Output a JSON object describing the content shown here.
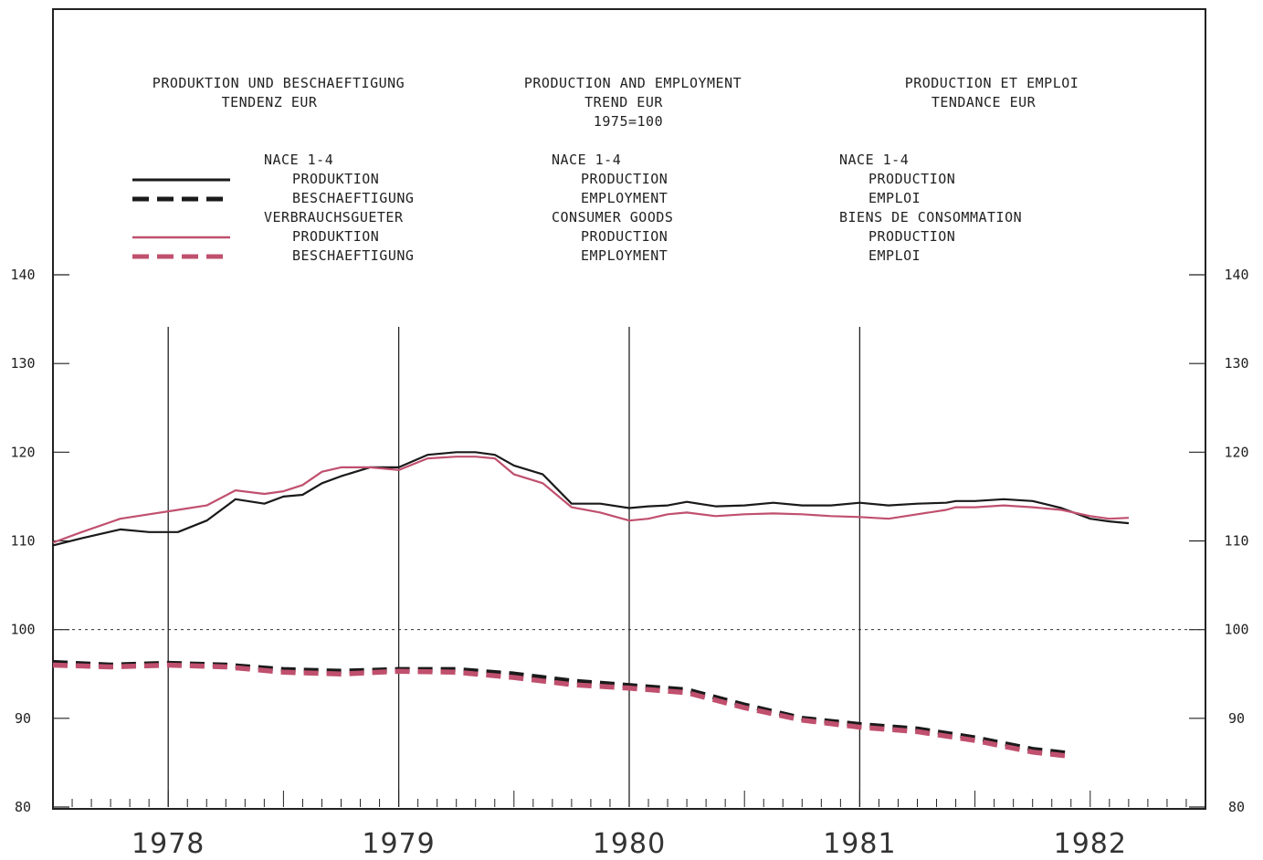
{
  "header": {
    "de": [
      "PRODUKTION UND BESCHAEFTIGUNG",
      "TENDENZ EUR"
    ],
    "en": [
      "PRODUCTION AND EMPLOYMENT",
      "TREND EUR",
      "1975=100"
    ],
    "fr": [
      "PRODUCTION ET EMPLOI",
      "TENDANCE EUR"
    ]
  },
  "legend": {
    "de": [
      "NACE 1-4",
      "PRODUKTION",
      "BESCHAEFTIGUNG",
      "VERBRAUCHSGUETER",
      "PRODUKTION",
      "BESCHAEFTIGUNG"
    ],
    "en": [
      "NACE 1-4",
      "PRODUCTION",
      "EMPLOYMENT",
      "CONSUMER GOODS",
      "PRODUCTION",
      "EMPLOYMENT"
    ],
    "fr": [
      "NACE 1-4",
      "PRODUCTION",
      "EMPLOI",
      "BIENS DE CONSOMMATION",
      "PRODUCTION",
      "EMPLOI"
    ]
  },
  "colors": {
    "black": "#1a1a1a",
    "pink": "#c0506e",
    "axis": "#222222"
  },
  "chart_data": {
    "type": "line",
    "ylim": [
      80,
      140
    ],
    "yticks": [
      80,
      90,
      100,
      110,
      120,
      130,
      140
    ],
    "xlim": [
      1978.0,
      1983.0
    ],
    "year_labels": [
      "1978",
      "1979",
      "1980",
      "1981",
      "1982"
    ],
    "reference_line": 100,
    "grid": false,
    "series": [
      {
        "name": "NACE 1-4 PRODUKTION / PRODUCTION",
        "color": "#1a1a1a",
        "style": "solid",
        "x": [
          1978.0,
          1978.125,
          1978.292,
          1978.417,
          1978.542,
          1978.667,
          1978.792,
          1978.917,
          1979.0,
          1979.083,
          1979.167,
          1979.25,
          1979.375,
          1979.5,
          1979.625,
          1979.75,
          1979.833,
          1979.917,
          1980.0,
          1980.125,
          1980.25,
          1980.375,
          1980.5,
          1980.583,
          1980.667,
          1980.75,
          1980.875,
          1981.0,
          1981.125,
          1981.25,
          1981.375,
          1981.5,
          1981.625,
          1981.75,
          1981.875,
          1981.917,
          1982.0,
          1982.125,
          1982.25,
          1982.375,
          1982.5,
          1982.583,
          1982.667
        ],
        "y": [
          109.5,
          110.3,
          111.3,
          111.0,
          111.0,
          112.3,
          114.7,
          114.2,
          115.0,
          115.2,
          116.5,
          117.3,
          118.3,
          118.3,
          119.7,
          120.0,
          120.0,
          119.7,
          118.5,
          117.5,
          114.2,
          114.2,
          113.7,
          113.9,
          114.0,
          114.4,
          113.9,
          114.0,
          114.3,
          114.0,
          114.0,
          114.3,
          114.0,
          114.2,
          114.3,
          114.5,
          114.5,
          114.7,
          114.5,
          113.7,
          112.5,
          112.2,
          112.0
        ]
      },
      {
        "name": "NACE 1-4 BESCHAEFTIGUNG / EMPLOYMENT",
        "color": "#1a1a1a",
        "style": "dashed",
        "x": [
          1978.0,
          1978.25,
          1978.5,
          1978.75,
          1979.0,
          1979.25,
          1979.5,
          1979.75,
          1980.0,
          1980.25,
          1980.5,
          1980.75,
          1981.0,
          1981.25,
          1981.5,
          1981.75,
          1982.0,
          1982.25,
          1982.42
        ],
        "y": [
          96.3,
          96.0,
          96.2,
          96.0,
          95.5,
          95.3,
          95.5,
          95.5,
          95.0,
          94.2,
          93.7,
          93.2,
          91.5,
          90.0,
          89.3,
          88.8,
          87.8,
          86.5,
          86.0
        ]
      },
      {
        "name": "VERBRAUCHSGUETER PRODUKTION / CONSUMER GOODS PRODUCTION",
        "color": "#c0506e",
        "style": "solid",
        "x": [
          1978.0,
          1978.125,
          1978.292,
          1978.417,
          1978.542,
          1978.667,
          1978.792,
          1978.917,
          1979.0,
          1979.083,
          1979.167,
          1979.25,
          1979.375,
          1979.5,
          1979.625,
          1979.75,
          1979.833,
          1979.917,
          1980.0,
          1980.125,
          1980.25,
          1980.375,
          1980.5,
          1980.583,
          1980.667,
          1980.75,
          1980.875,
          1981.0,
          1981.125,
          1981.25,
          1981.375,
          1981.5,
          1981.625,
          1981.75,
          1981.875,
          1981.917,
          1982.0,
          1982.125,
          1982.25,
          1982.375,
          1982.5,
          1982.583,
          1982.667
        ],
        "y": [
          109.8,
          111.0,
          112.5,
          113.0,
          113.5,
          114.0,
          115.7,
          115.3,
          115.6,
          116.3,
          117.8,
          118.3,
          118.3,
          118.0,
          119.3,
          119.5,
          119.5,
          119.3,
          117.5,
          116.5,
          113.8,
          113.2,
          112.3,
          112.5,
          113.0,
          113.2,
          112.8,
          113.0,
          113.1,
          113.0,
          112.8,
          112.7,
          112.5,
          113.0,
          113.5,
          113.8,
          113.8,
          114.0,
          113.8,
          113.5,
          112.8,
          112.5,
          112.6
        ]
      },
      {
        "name": "VERBRAUCHSGUETER BESCHAEFTIGUNG / CONSUMER GOODS EMPLOYMENT",
        "color": "#c0506e",
        "style": "dashed",
        "x": [
          1978.0,
          1978.25,
          1978.5,
          1978.75,
          1979.0,
          1979.25,
          1979.5,
          1979.75,
          1980.0,
          1980.25,
          1980.5,
          1980.75,
          1981.0,
          1981.25,
          1981.5,
          1981.75,
          1982.0,
          1982.25,
          1982.42
        ],
        "y": [
          96.0,
          95.8,
          96.0,
          95.8,
          95.2,
          95.0,
          95.3,
          95.2,
          94.6,
          93.8,
          93.4,
          92.9,
          91.2,
          89.8,
          89.0,
          88.5,
          87.5,
          86.2,
          85.7
        ]
      }
    ]
  }
}
